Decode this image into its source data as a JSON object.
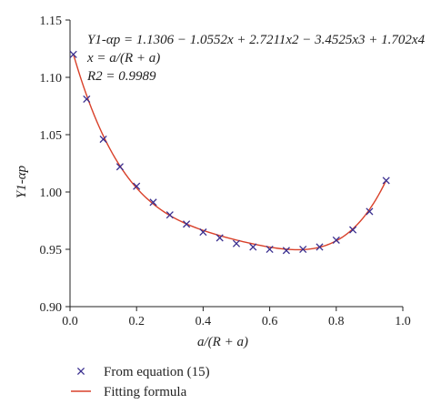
{
  "chart_data": {
    "type": "scatter",
    "xlabel": "a/(R + a)",
    "ylabel": "Y1-αp",
    "xlim": [
      0,
      1.0
    ],
    "ylim": [
      0.9,
      1.15
    ],
    "x_ticks": [
      "0.0",
      "0.2",
      "0.4",
      "0.6",
      "0.8",
      "1.0"
    ],
    "y_ticks": [
      "0.90",
      "0.95",
      "1.00",
      "1.05",
      "1.10",
      "1.15"
    ],
    "grid": false,
    "annotations": [
      "Y1-αp = 1.1306 − 1.0552x + 2.7211x2 − 3.4525x3 + 1.702x4",
      "x = a/(R + a)",
      "R2 = 0.9989"
    ],
    "fit_coefficients": [
      1.1306,
      -1.0552,
      2.7211,
      -3.4525,
      1.702
    ],
    "fit_x_range": [
      0.01,
      0.95
    ],
    "series": [
      {
        "name": "From equation (15)",
        "marker": "x",
        "color": "#3a2f8f",
        "x": [
          0.01,
          0.05,
          0.1,
          0.15,
          0.2,
          0.25,
          0.3,
          0.35,
          0.4,
          0.45,
          0.5,
          0.55,
          0.6,
          0.65,
          0.7,
          0.75,
          0.8,
          0.85,
          0.9,
          0.95
        ],
        "y": [
          1.12,
          1.081,
          1.046,
          1.022,
          1.005,
          0.991,
          0.98,
          0.972,
          0.965,
          0.96,
          0.955,
          0.952,
          0.95,
          0.949,
          0.95,
          0.952,
          0.958,
          0.967,
          0.983,
          1.01
        ]
      },
      {
        "name": "Fitting formula",
        "marker": "line",
        "color": "#d9412a"
      }
    ]
  }
}
